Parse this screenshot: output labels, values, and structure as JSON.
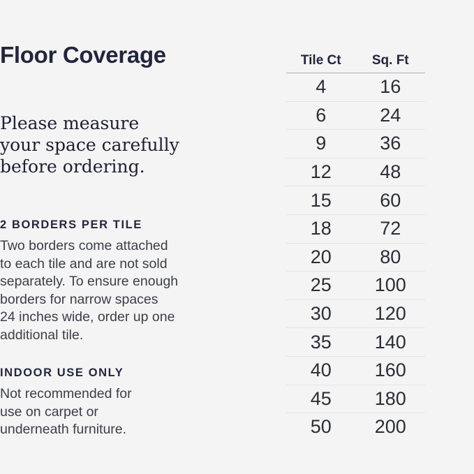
{
  "page": {
    "title": "Floor Coverage",
    "lead_note": "Please measure\nyour space carefully\nbefore ordering."
  },
  "sections": [
    {
      "heading": "2 BORDERS PER TILE",
      "body": "Two borders come attached\nto each tile and are not sold\nseparately. To ensure enough\nborders for narrow spaces\n24 inches wide, order up one\nadditional tile."
    },
    {
      "heading": "INDOOR USE ONLY",
      "body": "Not recommended for\nuse on carpet or\nunderneath furniture."
    }
  ],
  "table": {
    "headers": [
      "Tile Ct",
      "Sq. Ft"
    ],
    "rows": [
      [
        "4",
        "16"
      ],
      [
        "6",
        "24"
      ],
      [
        "9",
        "36"
      ],
      [
        "12",
        "48"
      ],
      [
        "15",
        "60"
      ],
      [
        "18",
        "72"
      ],
      [
        "20",
        "80"
      ],
      [
        "25",
        "100"
      ],
      [
        "30",
        "120"
      ],
      [
        "35",
        "140"
      ],
      [
        "40",
        "160"
      ],
      [
        "45",
        "180"
      ],
      [
        "50",
        "200"
      ]
    ]
  },
  "colors": {
    "background": "#f4f4f5",
    "heading_text": "#22263b",
    "body_text": "#3b3f47",
    "table_text": "#2b2e35",
    "header_rule": "#aeb0b6",
    "row_rule": "#e4e4e7"
  }
}
